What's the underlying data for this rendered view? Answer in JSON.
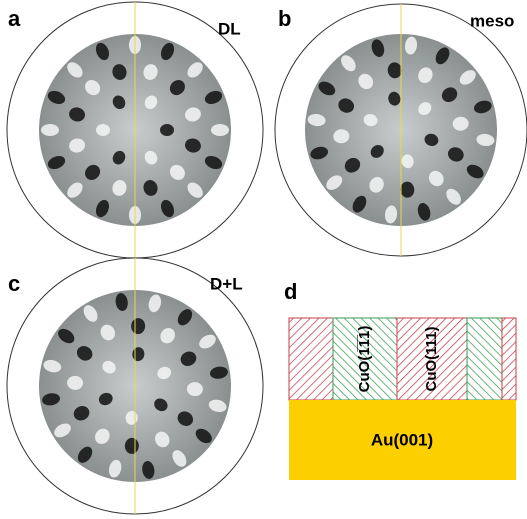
{
  "panels": [
    {
      "letter": "a",
      "label": "DL"
    },
    {
      "letter": "b",
      "label": "meso"
    },
    {
      "letter": "c",
      "label": "D+L"
    }
  ],
  "schematic": {
    "letter": "d",
    "domains": [
      "CuO(1̅1̅1)",
      "CuO(111)"
    ],
    "substrate": "Au(001)"
  }
}
